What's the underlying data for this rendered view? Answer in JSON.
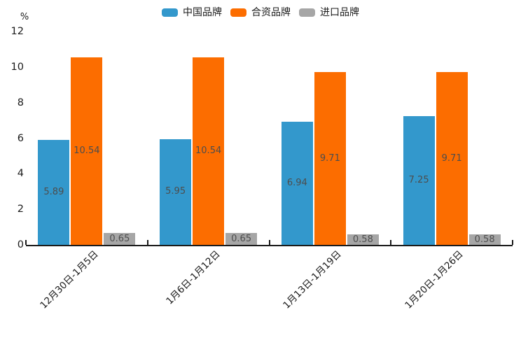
{
  "chart_data": {
    "type": "bar",
    "title": "",
    "unit_label": "%",
    "categories": [
      "12月30日-1月5日",
      "1月6日-1月12日",
      "1月13日-1月19日",
      "1月20日-1月26日"
    ],
    "series": [
      {
        "name": "中国品牌",
        "color": "#3398CC",
        "values": [
          5.89,
          5.95,
          6.94,
          7.25
        ]
      },
      {
        "name": "合资品牌",
        "color": "#FC6D00",
        "values": [
          10.54,
          10.54,
          9.71,
          9.71
        ]
      },
      {
        "name": "进口品牌",
        "color": "#A6A6A6",
        "values": [
          0.65,
          0.65,
          0.58,
          0.58
        ]
      }
    ],
    "y_axis": {
      "min": 0,
      "max": 12,
      "tick_step": 2,
      "ticks": [
        0,
        2,
        4,
        6,
        8,
        10,
        12
      ]
    },
    "value_labels": true,
    "value_label_color": "#4d4d4d",
    "axis_color": "#1a1a1a",
    "legend_position": "top",
    "grid": false,
    "background": "#ffffff"
  }
}
